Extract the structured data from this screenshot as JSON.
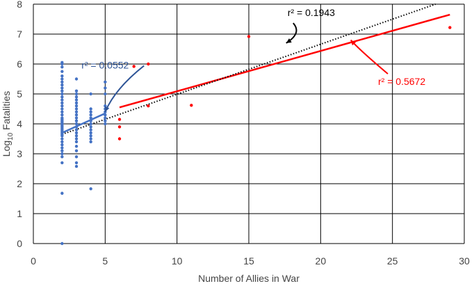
{
  "chart_data": {
    "type": "scatter",
    "title": "",
    "xlabel": "Number of Allies in War",
    "ylabel_main": "Log",
    "ylabel_sub": "10",
    "ylabel_rest": " Fatalities",
    "xlim": [
      0,
      30
    ],
    "ylim": [
      0,
      8
    ],
    "xticks": [
      "0",
      "5",
      "10",
      "15",
      "20",
      "25",
      "30"
    ],
    "yticks": [
      "0",
      "1",
      "2",
      "3",
      "4",
      "5",
      "6",
      "7",
      "8"
    ],
    "grid": true,
    "colors": {
      "blue": "#4472c4",
      "red": "#ff0000",
      "black": "#000000",
      "blue_text": "#2f5597"
    },
    "series": [
      {
        "color": "blue",
        "points": [
          [
            2,
            0.0
          ],
          [
            2,
            1.68
          ],
          [
            2,
            2.7
          ],
          [
            2,
            2.9
          ],
          [
            2,
            3.0
          ],
          [
            2,
            3.1
          ],
          [
            2,
            3.2
          ],
          [
            2,
            3.3
          ],
          [
            2,
            3.4
          ],
          [
            2,
            3.5
          ],
          [
            2,
            3.6
          ],
          [
            2,
            3.65
          ],
          [
            2,
            3.7
          ],
          [
            2,
            3.75
          ],
          [
            2,
            3.8
          ],
          [
            2,
            3.85
          ],
          [
            2,
            3.9
          ],
          [
            2,
            3.95
          ],
          [
            2,
            4.0
          ],
          [
            2,
            4.05
          ],
          [
            2,
            4.1
          ],
          [
            2,
            4.15
          ],
          [
            2,
            4.2
          ],
          [
            2,
            4.3
          ],
          [
            2,
            4.4
          ],
          [
            2,
            4.5
          ],
          [
            2,
            4.6
          ],
          [
            2,
            4.7
          ],
          [
            2,
            4.8
          ],
          [
            2,
            4.9
          ],
          [
            2,
            5.0
          ],
          [
            2,
            5.1
          ],
          [
            2,
            5.2
          ],
          [
            2,
            5.3
          ],
          [
            2,
            5.4
          ],
          [
            2,
            5.5
          ],
          [
            2,
            5.6
          ],
          [
            2,
            5.75
          ],
          [
            2,
            5.9
          ],
          [
            2,
            6.0
          ],
          [
            2,
            6.05
          ],
          [
            3,
            2.58
          ],
          [
            3,
            2.7
          ],
          [
            3,
            2.9
          ],
          [
            3,
            3.1
          ],
          [
            3,
            3.25
          ],
          [
            3,
            3.4
          ],
          [
            3,
            3.5
          ],
          [
            3,
            3.6
          ],
          [
            3,
            3.7
          ],
          [
            3,
            3.8
          ],
          [
            3,
            3.9
          ],
          [
            3,
            4.0
          ],
          [
            3,
            4.1
          ],
          [
            3,
            4.2
          ],
          [
            3,
            4.3
          ],
          [
            3,
            4.4
          ],
          [
            3,
            4.5
          ],
          [
            3,
            4.6
          ],
          [
            3,
            4.7
          ],
          [
            3,
            4.8
          ],
          [
            3,
            4.9
          ],
          [
            3,
            5.0
          ],
          [
            3,
            5.1
          ],
          [
            3,
            5.5
          ],
          [
            4,
            1.83
          ],
          [
            4,
            3.4
          ],
          [
            4,
            3.5
          ],
          [
            4,
            3.6
          ],
          [
            4,
            3.7
          ],
          [
            4,
            3.8
          ],
          [
            4,
            3.9
          ],
          [
            4,
            4.0
          ],
          [
            4,
            4.1
          ],
          [
            4,
            4.2
          ],
          [
            4,
            4.3
          ],
          [
            4,
            4.4
          ],
          [
            4,
            4.5
          ],
          [
            4,
            5.0
          ],
          [
            5,
            4.0
          ],
          [
            5,
            4.1
          ],
          [
            5,
            4.2
          ],
          [
            5,
            4.3
          ],
          [
            5,
            4.4
          ],
          [
            5,
            4.5
          ],
          [
            5,
            4.6
          ],
          [
            5,
            5.0
          ],
          [
            5,
            5.2
          ],
          [
            5,
            5.4
          ]
        ]
      },
      {
        "color": "red",
        "points": [
          [
            6,
            3.5
          ],
          [
            6,
            3.9
          ],
          [
            6,
            4.15
          ],
          [
            7,
            5.92
          ],
          [
            8,
            6.0
          ],
          [
            8,
            4.6
          ],
          [
            11,
            4.62
          ],
          [
            15,
            6.92
          ],
          [
            29,
            7.22
          ]
        ]
      }
    ],
    "trendlines": [
      {
        "color": "blue",
        "style": "solid",
        "x": [
          2,
          5
        ],
        "y": [
          3.7,
          4.35
        ]
      },
      {
        "color": "red",
        "style": "solid",
        "x": [
          6,
          29
        ],
        "y": [
          4.55,
          7.65
        ]
      },
      {
        "color": "black",
        "style": "dotted",
        "x": [
          2,
          28
        ],
        "y": [
          3.65,
          8.0
        ]
      }
    ],
    "annotations": [
      {
        "text": "r² = 0.0552",
        "color": "blue_text",
        "at": [
          3.35,
          5.85
        ],
        "arrow_to": [
          5.0,
          4.4
        ]
      },
      {
        "text": "r² = 0.1943",
        "color": "black",
        "at": [
          17.7,
          7.6
        ],
        "arrow_to": [
          17.6,
          6.7
        ]
      },
      {
        "text": "r² = 0.5672",
        "color": "red",
        "at": [
          24.0,
          5.3
        ],
        "arrow_to": [
          22.1,
          6.8
        ]
      }
    ]
  }
}
